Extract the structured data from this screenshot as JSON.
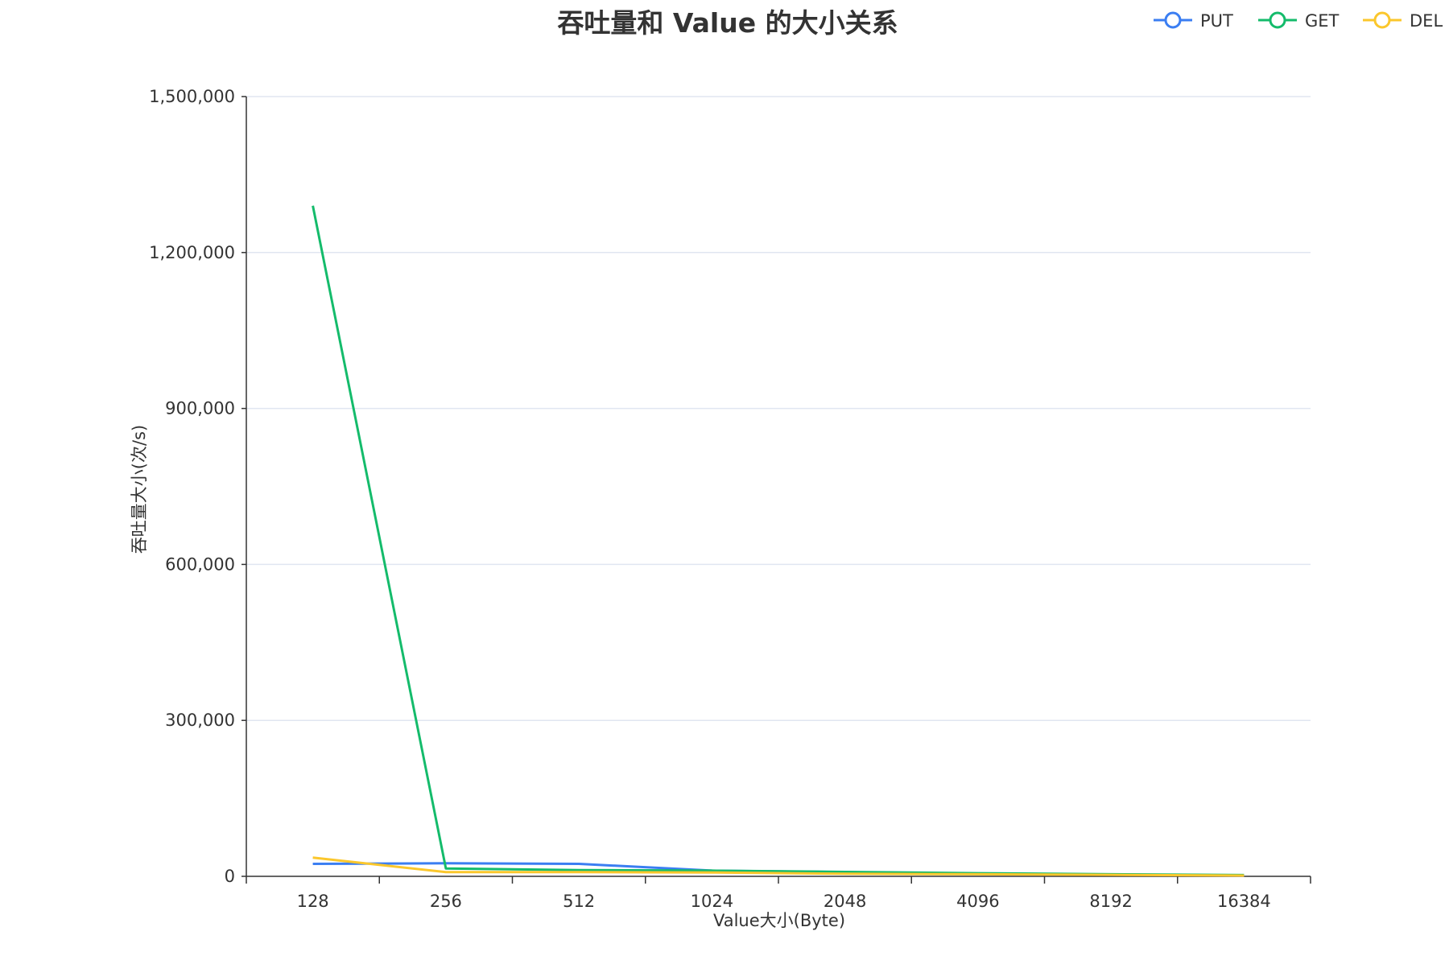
{
  "chart_data": {
    "type": "line",
    "title": "吞吐量和 Value 的大小关系",
    "xlabel": "Value大小(Byte)",
    "ylabel": "吞吐量大小(次/s)",
    "categories": [
      "128",
      "256",
      "512",
      "1024",
      "2048",
      "4096",
      "8192",
      "16384"
    ],
    "ylim": [
      0,
      1500000
    ],
    "yticks": [
      "0",
      "300,000",
      "600,000",
      "900,000",
      "1,200,000",
      "1,500,000"
    ],
    "ytick_values": [
      0,
      300000,
      600000,
      900000,
      1200000,
      1500000
    ],
    "grid": true,
    "legend_position": "top-right",
    "series": [
      {
        "name": "PUT",
        "color": "#3b7ef2",
        "values": [
          24000,
          25000,
          24000,
          11000,
          8000,
          5000,
          3500,
          2000
        ]
      },
      {
        "name": "GET",
        "color": "#14bb6b",
        "values": [
          1290000,
          15000,
          12000,
          11000,
          8500,
          6000,
          4000,
          2500
        ]
      },
      {
        "name": "DEL",
        "color": "#fbc72c",
        "values": [
          36000,
          8000,
          8000,
          7500,
          5000,
          4000,
          3000,
          1500
        ]
      }
    ]
  }
}
